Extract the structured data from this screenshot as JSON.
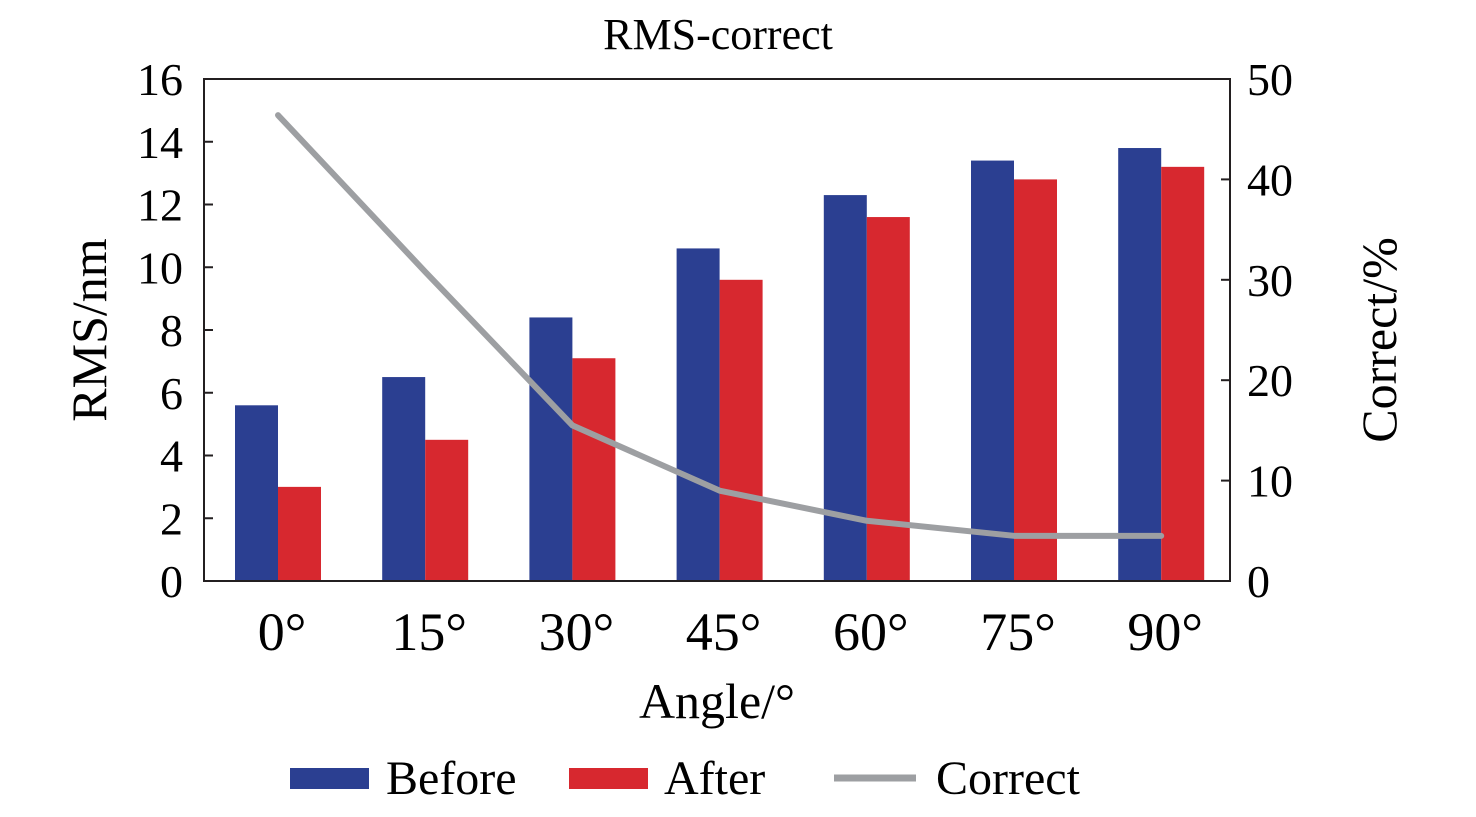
{
  "chart_data": {
    "type": "bar",
    "title": "RMS-correct",
    "xlabel": "Angle/°",
    "ylabel": "RMS/nm",
    "y2label": "Correct/%",
    "categories": [
      "0°",
      "15°",
      "30°",
      "45°",
      "60°",
      "75°",
      "90°"
    ],
    "ylim": [
      0,
      16
    ],
    "y2lim": [
      0,
      50
    ],
    "yticks": [
      "0",
      "2",
      "4",
      "6",
      "8",
      "10",
      "12",
      "14",
      "16"
    ],
    "y2ticks": [
      "0",
      "10",
      "20",
      "30",
      "40",
      "50"
    ],
    "grid": false,
    "legend_position": "bottom",
    "series": [
      {
        "name": "Before",
        "type": "bar",
        "axis": "left",
        "color": "#2b3f91",
        "values": [
          5.6,
          6.5,
          8.4,
          10.6,
          12.3,
          13.4,
          13.8
        ]
      },
      {
        "name": "After",
        "type": "bar",
        "axis": "left",
        "color": "#d7282f",
        "values": [
          3.0,
          4.5,
          7.1,
          9.6,
          11.6,
          12.8,
          13.2
        ]
      },
      {
        "name": "Correct",
        "type": "line",
        "axis": "right",
        "color": "#9d9fa2",
        "values": [
          46.4,
          30.8,
          15.5,
          9.0,
          6.0,
          4.5,
          4.5
        ]
      }
    ]
  }
}
